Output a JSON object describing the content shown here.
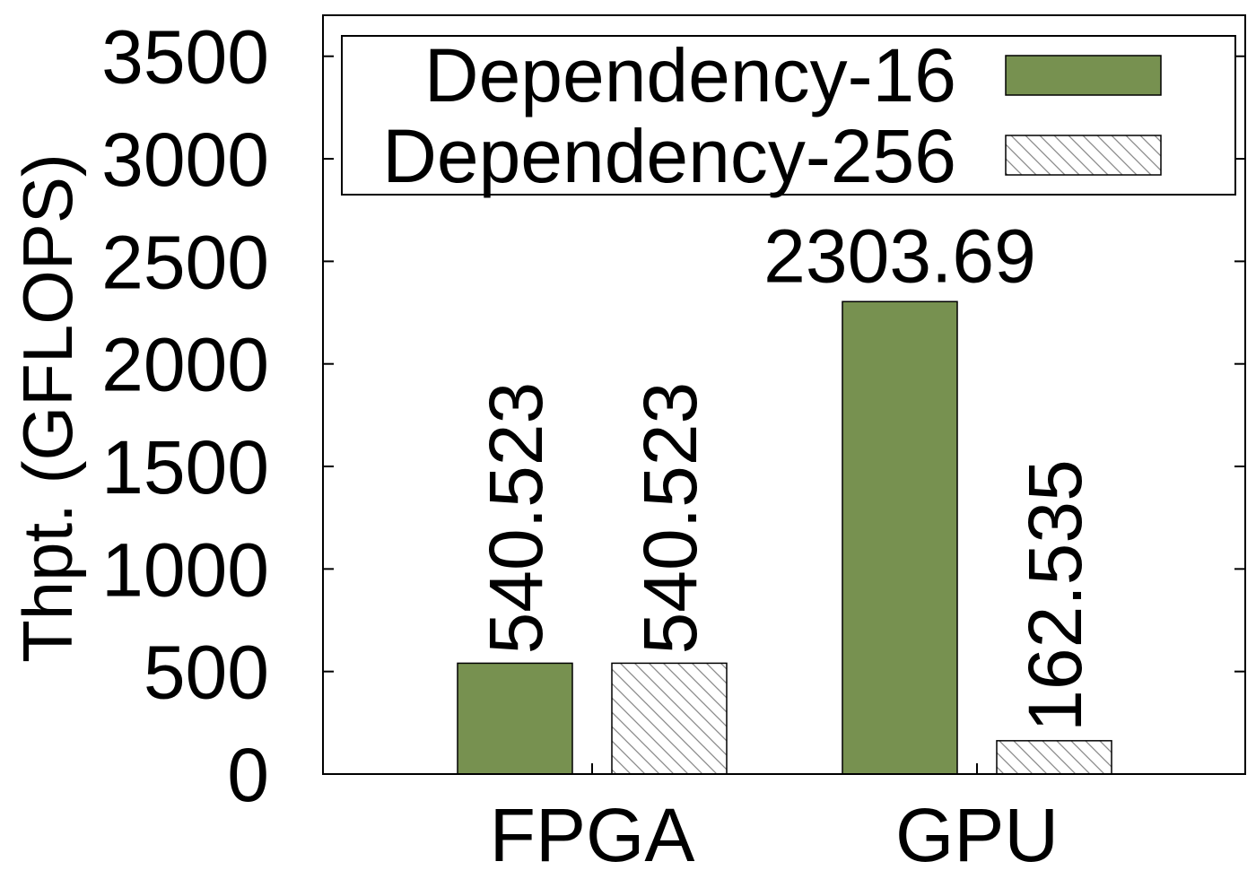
{
  "chart_data": {
    "type": "bar",
    "title": "",
    "xlabel": "",
    "ylabel": "Thpt. (GFLOPS)",
    "ylim": [
      0,
      3700
    ],
    "yticks": [
      0,
      500,
      1000,
      1500,
      2000,
      2500,
      3000,
      3500
    ],
    "categories": [
      "FPGA",
      "GPU"
    ],
    "series": [
      {
        "name": "Dependency-16",
        "values": [
          540.523,
          2303.69
        ],
        "labels": [
          "540.523",
          "2303.69"
        ],
        "style": "solid",
        "color": "#779150"
      },
      {
        "name": "Dependency-256",
        "values": [
          540.523,
          162.535
        ],
        "labels": [
          "540.523",
          "162.535"
        ],
        "style": "hatch",
        "color": "#ffffff"
      }
    ],
    "legend": "top",
    "grid": false
  }
}
